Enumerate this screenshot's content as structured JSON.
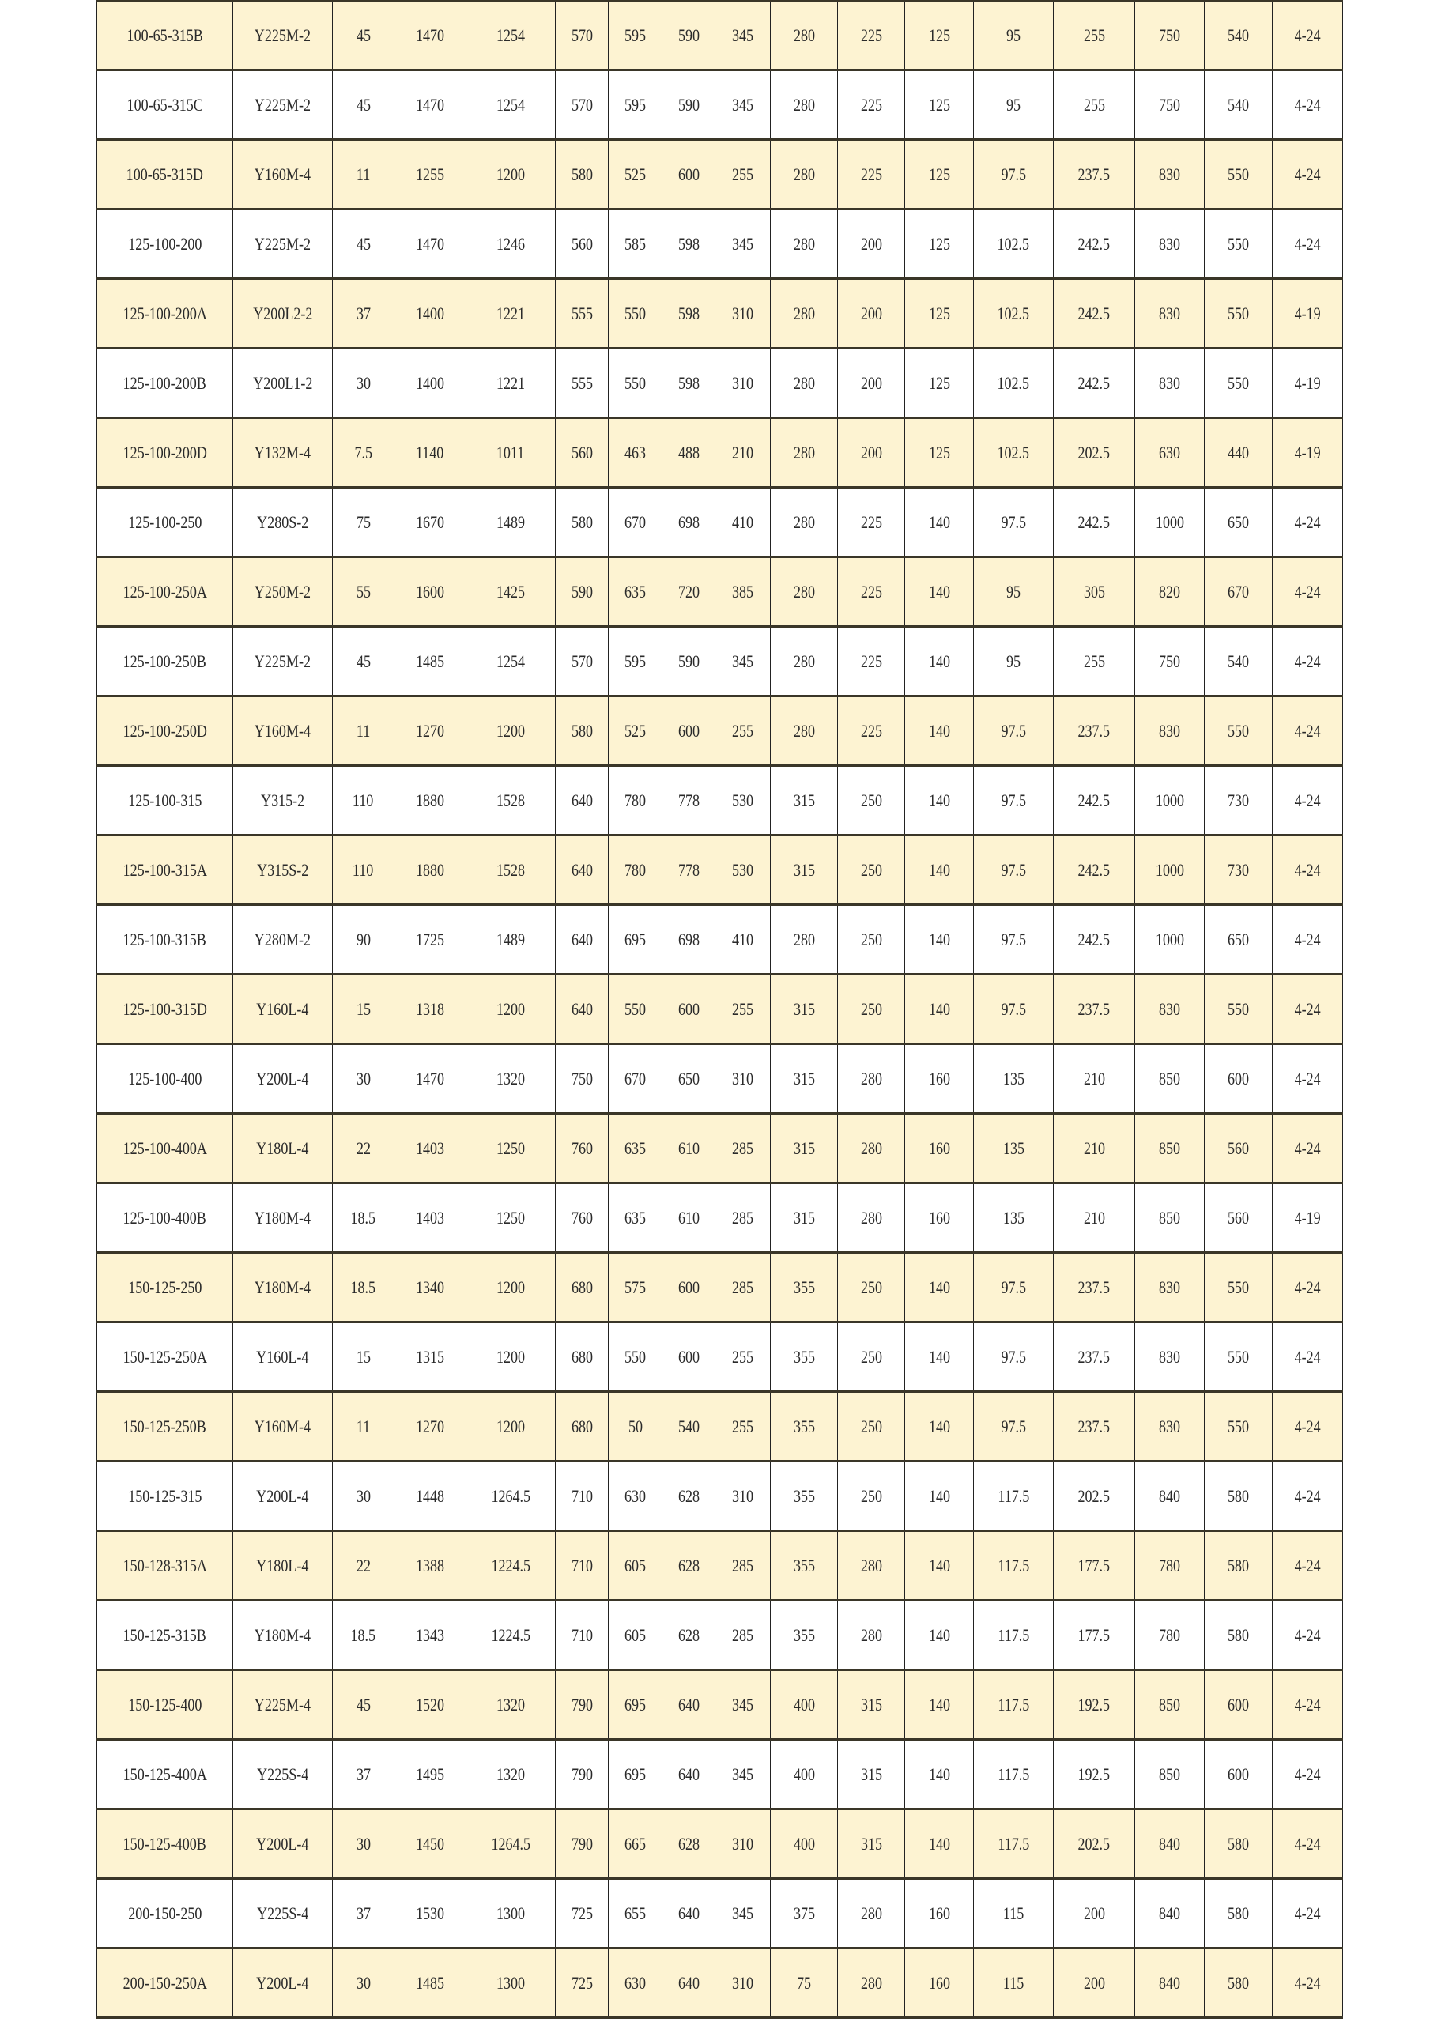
{
  "colors": {
    "row_highlight": "#fdf3d2",
    "border": "#3a3628"
  },
  "rows": [
    [
      "100-65-315B",
      "Y225M-2",
      "45",
      "1470",
      "1254",
      "570",
      "595",
      "590",
      "345",
      "280",
      "225",
      "125",
      "95",
      "255",
      "750",
      "540",
      "4-24"
    ],
    [
      "100-65-315C",
      "Y225M-2",
      "45",
      "1470",
      "1254",
      "570",
      "595",
      "590",
      "345",
      "280",
      "225",
      "125",
      "95",
      "255",
      "750",
      "540",
      "4-24"
    ],
    [
      "100-65-315D",
      "Y160M-4",
      "11",
      "1255",
      "1200",
      "580",
      "525",
      "600",
      "255",
      "280",
      "225",
      "125",
      "97.5",
      "237.5",
      "830",
      "550",
      "4-24"
    ],
    [
      "125-100-200",
      "Y225M-2",
      "45",
      "1470",
      "1246",
      "560",
      "585",
      "598",
      "345",
      "280",
      "200",
      "125",
      "102.5",
      "242.5",
      "830",
      "550",
      "4-24"
    ],
    [
      "125-100-200A",
      "Y200L2-2",
      "37",
      "1400",
      "1221",
      "555",
      "550",
      "598",
      "310",
      "280",
      "200",
      "125",
      "102.5",
      "242.5",
      "830",
      "550",
      "4-19"
    ],
    [
      "125-100-200B",
      "Y200L1-2",
      "30",
      "1400",
      "1221",
      "555",
      "550",
      "598",
      "310",
      "280",
      "200",
      "125",
      "102.5",
      "242.5",
      "830",
      "550",
      "4-19"
    ],
    [
      "125-100-200D",
      "Y132M-4",
      "7.5",
      "1140",
      "1011",
      "560",
      "463",
      "488",
      "210",
      "280",
      "200",
      "125",
      "102.5",
      "202.5",
      "630",
      "440",
      "4-19"
    ],
    [
      "125-100-250",
      "Y280S-2",
      "75",
      "1670",
      "1489",
      "580",
      "670",
      "698",
      "410",
      "280",
      "225",
      "140",
      "97.5",
      "242.5",
      "1000",
      "650",
      "4-24"
    ],
    [
      "125-100-250A",
      "Y250M-2",
      "55",
      "1600",
      "1425",
      "590",
      "635",
      "720",
      "385",
      "280",
      "225",
      "140",
      "95",
      "305",
      "820",
      "670",
      "4-24"
    ],
    [
      "125-100-250B",
      "Y225M-2",
      "45",
      "1485",
      "1254",
      "570",
      "595",
      "590",
      "345",
      "280",
      "225",
      "140",
      "95",
      "255",
      "750",
      "540",
      "4-24"
    ],
    [
      "125-100-250D",
      "Y160M-4",
      "11",
      "1270",
      "1200",
      "580",
      "525",
      "600",
      "255",
      "280",
      "225",
      "140",
      "97.5",
      "237.5",
      "830",
      "550",
      "4-24"
    ],
    [
      "125-100-315",
      "Y315-2",
      "110",
      "1880",
      "1528",
      "640",
      "780",
      "778",
      "530",
      "315",
      "250",
      "140",
      "97.5",
      "242.5",
      "1000",
      "730",
      "4-24"
    ],
    [
      "125-100-315A",
      "Y315S-2",
      "110",
      "1880",
      "1528",
      "640",
      "780",
      "778",
      "530",
      "315",
      "250",
      "140",
      "97.5",
      "242.5",
      "1000",
      "730",
      "4-24"
    ],
    [
      "125-100-315B",
      "Y280M-2",
      "90",
      "1725",
      "1489",
      "640",
      "695",
      "698",
      "410",
      "280",
      "250",
      "140",
      "97.5",
      "242.5",
      "1000",
      "650",
      "4-24"
    ],
    [
      "125-100-315D",
      "Y160L-4",
      "15",
      "1318",
      "1200",
      "640",
      "550",
      "600",
      "255",
      "315",
      "250",
      "140",
      "97.5",
      "237.5",
      "830",
      "550",
      "4-24"
    ],
    [
      "125-100-400",
      "Y200L-4",
      "30",
      "1470",
      "1320",
      "750",
      "670",
      "650",
      "310",
      "315",
      "280",
      "160",
      "135",
      "210",
      "850",
      "600",
      "4-24"
    ],
    [
      "125-100-400A",
      "Y180L-4",
      "22",
      "1403",
      "1250",
      "760",
      "635",
      "610",
      "285",
      "315",
      "280",
      "160",
      "135",
      "210",
      "850",
      "560",
      "4-24"
    ],
    [
      "125-100-400B",
      "Y180M-4",
      "18.5",
      "1403",
      "1250",
      "760",
      "635",
      "610",
      "285",
      "315",
      "280",
      "160",
      "135",
      "210",
      "850",
      "560",
      "4-19"
    ],
    [
      "150-125-250",
      "Y180M-4",
      "18.5",
      "1340",
      "1200",
      "680",
      "575",
      "600",
      "285",
      "355",
      "250",
      "140",
      "97.5",
      "237.5",
      "830",
      "550",
      "4-24"
    ],
    [
      "150-125-250A",
      "Y160L-4",
      "15",
      "1315",
      "1200",
      "680",
      "550",
      "600",
      "255",
      "355",
      "250",
      "140",
      "97.5",
      "237.5",
      "830",
      "550",
      "4-24"
    ],
    [
      "150-125-250B",
      "Y160M-4",
      "11",
      "1270",
      "1200",
      "680",
      "50",
      "540",
      "255",
      "355",
      "250",
      "140",
      "97.5",
      "237.5",
      "830",
      "550",
      "4-24"
    ],
    [
      "150-125-315",
      "Y200L-4",
      "30",
      "1448",
      "1264.5",
      "710",
      "630",
      "628",
      "310",
      "355",
      "250",
      "140",
      "117.5",
      "202.5",
      "840",
      "580",
      "4-24"
    ],
    [
      "150-128-315A",
      "Y180L-4",
      "22",
      "1388",
      "1224.5",
      "710",
      "605",
      "628",
      "285",
      "355",
      "280",
      "140",
      "117.5",
      "177.5",
      "780",
      "580",
      "4-24"
    ],
    [
      "150-125-315B",
      "Y180M-4",
      "18.5",
      "1343",
      "1224.5",
      "710",
      "605",
      "628",
      "285",
      "355",
      "280",
      "140",
      "117.5",
      "177.5",
      "780",
      "580",
      "4-24"
    ],
    [
      "150-125-400",
      "Y225M-4",
      "45",
      "1520",
      "1320",
      "790",
      "695",
      "640",
      "345",
      "400",
      "315",
      "140",
      "117.5",
      "192.5",
      "850",
      "600",
      "4-24"
    ],
    [
      "150-125-400A",
      "Y225S-4",
      "37",
      "1495",
      "1320",
      "790",
      "695",
      "640",
      "345",
      "400",
      "315",
      "140",
      "117.5",
      "192.5",
      "850",
      "600",
      "4-24"
    ],
    [
      "150-125-400B",
      "Y200L-4",
      "30",
      "1450",
      "1264.5",
      "790",
      "665",
      "628",
      "310",
      "400",
      "315",
      "140",
      "117.5",
      "202.5",
      "840",
      "580",
      "4-24"
    ],
    [
      "200-150-250",
      "Y225S-4",
      "37",
      "1530",
      "1300",
      "725",
      "655",
      "640",
      "345",
      "375",
      "280",
      "160",
      "115",
      "200",
      "840",
      "580",
      "4-24"
    ],
    [
      "200-150-250A",
      "Y200L-4",
      "30",
      "1485",
      "1300",
      "725",
      "630",
      "640",
      "310",
      "75",
      "280",
      "160",
      "115",
      "200",
      "840",
      "580",
      "4-24"
    ]
  ]
}
